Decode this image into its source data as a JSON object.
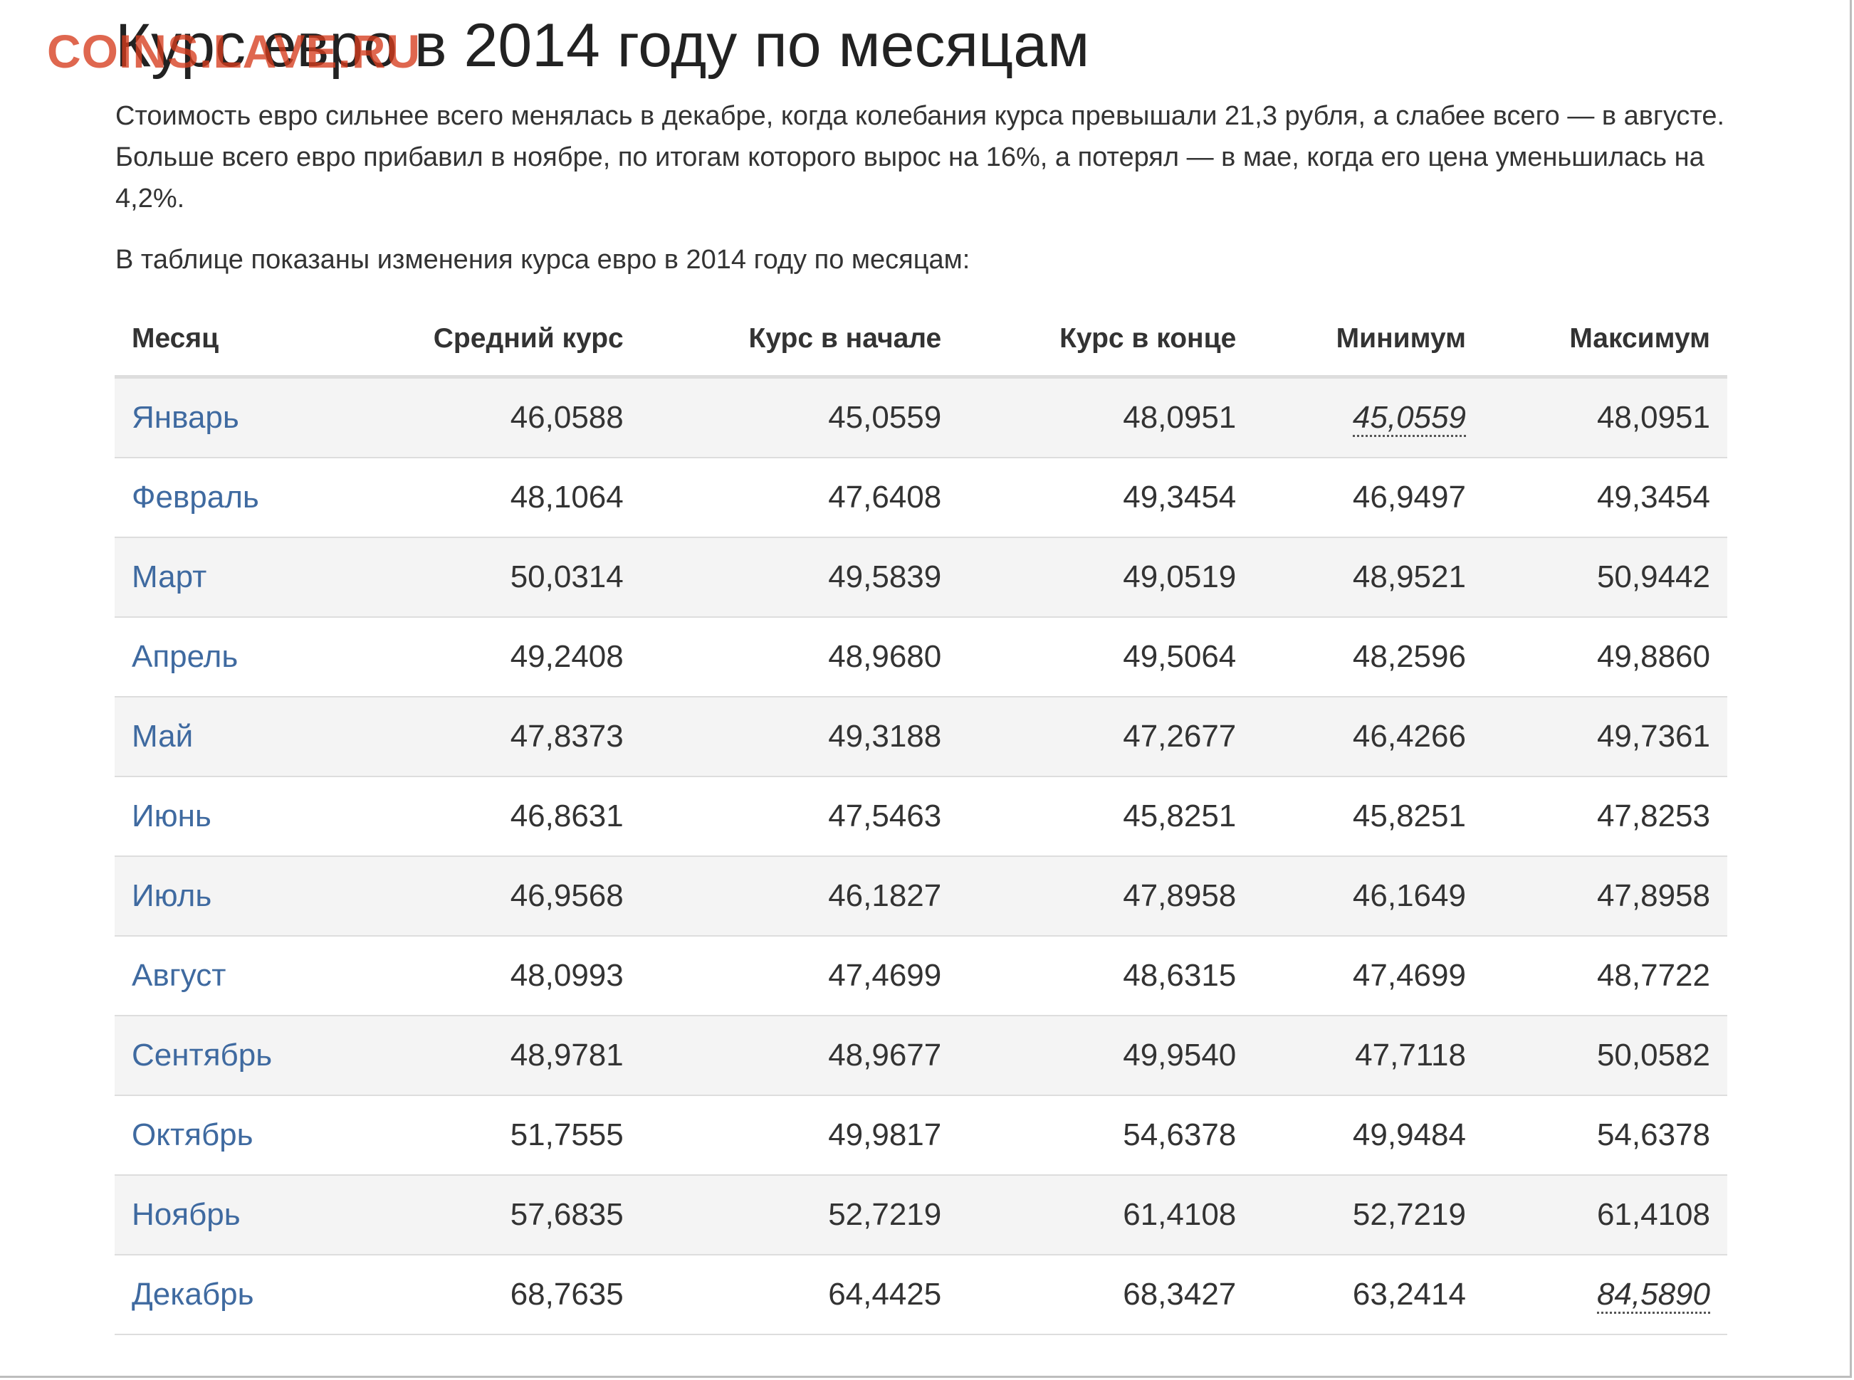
{
  "watermark": "COINS.LAVE.RU",
  "title": "Курс евро в 2014 году по месяцам",
  "intro": "Стоимость евро сильнее всего менялась в декабре, когда колебания курса превышали 21,3 рубля, а слабее всего — в августе. Больше всего евро прибавил в ноябре, по итогам которого вырос на 16%, а потерял — в мае, когда его цена уменьшилась на 4,2%.",
  "lead": "В таблице показаны изменения курса евро в 2014 году по месяцам:",
  "table": {
    "headers": [
      "Месяц",
      "Средний курс",
      "Курс в начале",
      "Курс в конце",
      "Минимум",
      "Максимум"
    ],
    "rows": [
      {
        "month": "Январь",
        "avg": "46,0588",
        "start": "45,0559",
        "end": "48,0951",
        "min": "45,0559",
        "max": "48,0951"
      },
      {
        "month": "Февраль",
        "avg": "48,1064",
        "start": "47,6408",
        "end": "49,3454",
        "min": "46,9497",
        "max": "49,3454"
      },
      {
        "month": "Март",
        "avg": "50,0314",
        "start": "49,5839",
        "end": "49,0519",
        "min": "48,9521",
        "max": "50,9442"
      },
      {
        "month": "Апрель",
        "avg": "49,2408",
        "start": "48,9680",
        "end": "49,5064",
        "min": "48,2596",
        "max": "49,8860"
      },
      {
        "month": "Май",
        "avg": "47,8373",
        "start": "49,3188",
        "end": "47,2677",
        "min": "46,4266",
        "max": "49,7361"
      },
      {
        "month": "Июнь",
        "avg": "46,8631",
        "start": "47,5463",
        "end": "45,8251",
        "min": "45,8251",
        "max": "47,8253"
      },
      {
        "month": "Июль",
        "avg": "46,9568",
        "start": "46,1827",
        "end": "47,8958",
        "min": "46,1649",
        "max": "47,8958"
      },
      {
        "month": "Август",
        "avg": "48,0993",
        "start": "47,4699",
        "end": "48,6315",
        "min": "47,4699",
        "max": "48,7722"
      },
      {
        "month": "Сентябрь",
        "avg": "48,9781",
        "start": "48,9677",
        "end": "49,9540",
        "min": "47,7118",
        "max": "50,0582"
      },
      {
        "month": "Октябрь",
        "avg": "51,7555",
        "start": "49,9817",
        "end": "54,6378",
        "min": "49,9484",
        "max": "54,6378"
      },
      {
        "month": "Ноябрь",
        "avg": "57,6835",
        "start": "52,7219",
        "end": "61,4108",
        "min": "52,7219",
        "max": "61,4108"
      },
      {
        "month": "Декабрь",
        "avg": "68,7635",
        "start": "64,4425",
        "end": "68,3427",
        "min": "63,2414",
        "max": "84,5890"
      }
    ]
  },
  "colors": {
    "link": "#3f6aa0",
    "watermark": "#d63c1e",
    "row_stripe": "#f4f4f4",
    "rule": "#dddddd"
  }
}
